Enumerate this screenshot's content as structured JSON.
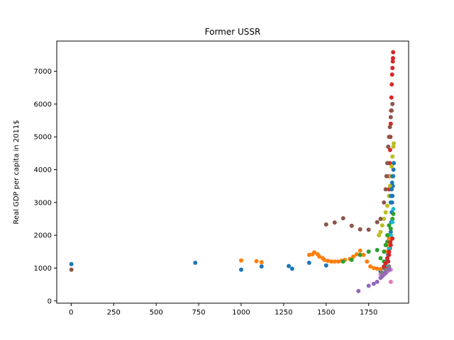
{
  "chart_data": {
    "type": "scatter",
    "title": "Former USSR",
    "xlabel": "",
    "ylabel": "Real GDP per capita in 2011$",
    "xlim": [
      -85,
      1985
    ],
    "ylim": [
      -70,
      7920
    ],
    "xticks": [
      0,
      250,
      500,
      750,
      1000,
      1250,
      1500,
      1750
    ],
    "yticks": [
      0,
      1000,
      2000,
      3000,
      4000,
      5000,
      6000,
      7000
    ],
    "grid": false,
    "series": [
      {
        "color": "#1f77b4",
        "points": [
          [
            1,
            1120
          ],
          [
            730,
            1160
          ],
          [
            1000,
            950
          ],
          [
            1120,
            1050
          ],
          [
            1280,
            1060
          ],
          [
            1300,
            980
          ],
          [
            1400,
            1160
          ],
          [
            1500,
            1080
          ],
          [
            1820,
            900
          ],
          [
            1840,
            1000
          ],
          [
            1850,
            1100
          ],
          [
            1860,
            1250
          ],
          [
            1865,
            1400
          ],
          [
            1870,
            1600
          ],
          [
            1875,
            1800
          ],
          [
            1880,
            2100
          ],
          [
            1883,
            2400
          ],
          [
            1886,
            2700
          ],
          [
            1888,
            3000
          ],
          [
            1890,
            3200
          ],
          [
            1892,
            3500
          ],
          [
            1894,
            3800
          ],
          [
            1896,
            4000
          ],
          [
            1898,
            4200
          ]
        ]
      },
      {
        "color": "#ff7f0e",
        "points": [
          [
            1000,
            1230
          ],
          [
            1090,
            1210
          ],
          [
            1120,
            1180
          ],
          [
            1400,
            1400
          ],
          [
            1420,
            1420
          ],
          [
            1430,
            1480
          ],
          [
            1450,
            1420
          ],
          [
            1460,
            1350
          ],
          [
            1480,
            1300
          ],
          [
            1490,
            1250
          ],
          [
            1510,
            1220
          ],
          [
            1530,
            1200
          ],
          [
            1550,
            1200
          ],
          [
            1570,
            1200
          ],
          [
            1590,
            1220
          ],
          [
            1610,
            1250
          ],
          [
            1640,
            1280
          ],
          [
            1660,
            1350
          ],
          [
            1680,
            1420
          ],
          [
            1700,
            1530
          ],
          [
            1720,
            1400
          ],
          [
            1740,
            1200
          ],
          [
            1760,
            1050
          ],
          [
            1780,
            1000
          ],
          [
            1800,
            980
          ],
          [
            1820,
            970
          ]
        ]
      },
      {
        "color": "#2ca02c",
        "points": [
          [
            1600,
            1200
          ],
          [
            1650,
            1250
          ],
          [
            1700,
            1400
          ],
          [
            1750,
            1500
          ],
          [
            1800,
            1550
          ],
          [
            1820,
            1300
          ],
          [
            1840,
            1200
          ],
          [
            1860,
            1800
          ],
          [
            1870,
            2000
          ],
          [
            1880,
            2200
          ],
          [
            1890,
            2500
          ],
          [
            1895,
            2650
          ]
        ]
      },
      {
        "color": "#d62728",
        "points": [
          [
            1860,
            1000
          ],
          [
            1865,
            1200
          ],
          [
            1870,
            1400
          ],
          [
            1875,
            1600
          ],
          [
            1878,
            1800
          ],
          [
            1880,
            2000
          ],
          [
            1870,
            3400
          ],
          [
            1872,
            3800
          ],
          [
            1874,
            4200
          ],
          [
            1876,
            4600
          ],
          [
            1878,
            5000
          ],
          [
            1880,
            5400
          ],
          [
            1882,
            5800
          ],
          [
            1884,
            6200
          ],
          [
            1886,
            6600
          ],
          [
            1888,
            6900
          ],
          [
            1890,
            7100
          ],
          [
            1892,
            7300
          ],
          [
            1893,
            7400
          ],
          [
            1894,
            7580
          ]
        ]
      },
      {
        "color": "#9467bd",
        "points": [
          [
            1690,
            300
          ],
          [
            1750,
            460
          ],
          [
            1780,
            520
          ],
          [
            1800,
            580
          ],
          [
            1820,
            700
          ],
          [
            1840,
            800
          ],
          [
            1860,
            900
          ]
        ]
      },
      {
        "color": "#8c564b",
        "points": [
          [
            1,
            950
          ],
          [
            1500,
            2330
          ],
          [
            1550,
            2390
          ],
          [
            1600,
            2520
          ],
          [
            1650,
            2290
          ],
          [
            1700,
            2180
          ],
          [
            1750,
            2170
          ],
          [
            1840,
            3000
          ],
          [
            1850,
            3400
          ],
          [
            1855,
            3800
          ],
          [
            1860,
            4200
          ],
          [
            1865,
            4700
          ],
          [
            1870,
            5000
          ],
          [
            1875,
            5300
          ],
          [
            1880,
            5600
          ],
          [
            1885,
            5800
          ],
          [
            1890,
            6000
          ]
        ]
      },
      {
        "color": "#e377c2",
        "points": [
          [
            1820,
            800
          ],
          [
            1840,
            850
          ],
          [
            1860,
            900
          ],
          [
            1880,
            950
          ]
        ]
      },
      {
        "color": "#7f7f7f",
        "points": [
          [
            1830,
            850
          ],
          [
            1850,
            950
          ],
          [
            1870,
            1050
          ]
        ]
      },
      {
        "color": "#bcbd22",
        "points": [
          [
            1810,
            2000
          ],
          [
            1820,
            2100
          ],
          [
            1830,
            2300
          ],
          [
            1840,
            2500
          ],
          [
            1850,
            2700
          ],
          [
            1860,
            2900
          ],
          [
            1870,
            3200
          ],
          [
            1875,
            3500
          ],
          [
            1880,
            3800
          ],
          [
            1885,
            4100
          ],
          [
            1890,
            4400
          ],
          [
            1895,
            4700
          ],
          [
            1898,
            4800
          ]
        ]
      },
      {
        "color": "#17becf",
        "points": [
          [
            1850,
            1100
          ],
          [
            1860,
            1300
          ],
          [
            1870,
            1600
          ],
          [
            1880,
            2000
          ],
          [
            1890,
            2400
          ],
          [
            1895,
            2800
          ]
        ]
      },
      {
        "color": "#1f77b4",
        "points": [
          [
            1880,
            3000
          ],
          [
            1882,
            3200
          ],
          [
            1885,
            3400
          ],
          [
            1888,
            3600
          ],
          [
            1890,
            3800
          ]
        ]
      },
      {
        "color": "#ff7f0e",
        "points": [
          [
            1850,
            1500
          ],
          [
            1860,
            1700
          ],
          [
            1870,
            1900
          ]
        ]
      },
      {
        "color": "#2ca02c",
        "points": [
          [
            1840,
            1500
          ],
          [
            1850,
            1700
          ],
          [
            1860,
            2000
          ],
          [
            1870,
            2300
          ]
        ]
      },
      {
        "color": "#d62728",
        "points": [
          [
            1840,
            1050
          ],
          [
            1850,
            1150
          ],
          [
            1860,
            1300
          ],
          [
            1870,
            1500
          ],
          [
            1880,
            1700
          ],
          [
            1890,
            1900
          ]
        ]
      },
      {
        "color": "#9467bd",
        "points": [
          [
            1830,
            750
          ],
          [
            1850,
            850
          ],
          [
            1870,
            950
          ]
        ]
      },
      {
        "color": "#8c564b",
        "points": [
          [
            1800,
            2400
          ],
          [
            1820,
            2500
          ]
        ]
      },
      {
        "color": "#e377c2",
        "points": [
          [
            1880,
            580
          ]
        ]
      }
    ]
  }
}
